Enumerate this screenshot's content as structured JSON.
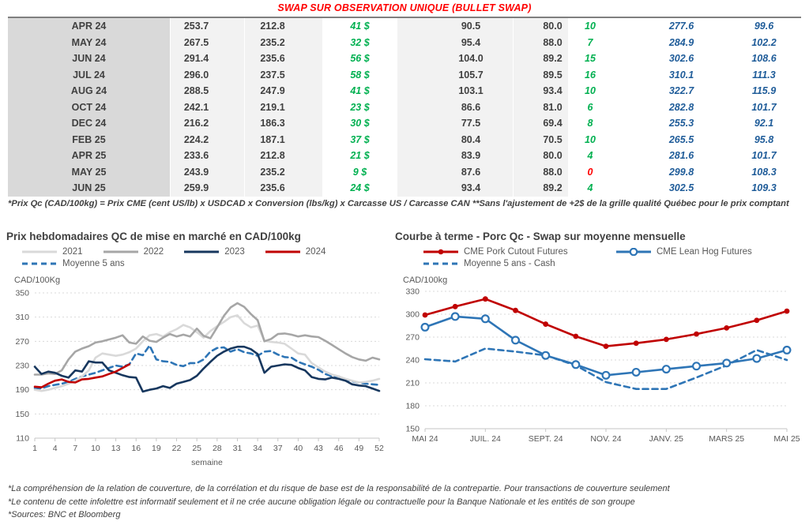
{
  "page_title": "SWAP SUR OBSERVATION UNIQUE (BULLET SWAP)",
  "colors": {
    "title_red": "#ff0000",
    "positive_green": "#00b050",
    "negative_red": "#ff0000",
    "forward_blue": "#1f5c99",
    "month_column_bg": "#d9d9d9",
    "value_column_bg": "#f2f2f2"
  },
  "table": {
    "rows": [
      {
        "month": "APR 24",
        "qc_swap": "253.7",
        "qc_cash": "212.8",
        "diff_qc": "41 $",
        "cme_swap": "90.5",
        "cme_cash": "80.0",
        "diff_cme": "10",
        "fwd_cad": "277.6",
        "fwd_us": "99.6",
        "diff_cme_negative": false
      },
      {
        "month": "MAY 24",
        "qc_swap": "267.5",
        "qc_cash": "235.2",
        "diff_qc": "32 $",
        "cme_swap": "95.4",
        "cme_cash": "88.0",
        "diff_cme": "7",
        "fwd_cad": "284.9",
        "fwd_us": "102.2",
        "diff_cme_negative": false
      },
      {
        "month": "JUN 24",
        "qc_swap": "291.4",
        "qc_cash": "235.6",
        "diff_qc": "56 $",
        "cme_swap": "104.0",
        "cme_cash": "89.2",
        "diff_cme": "15",
        "fwd_cad": "302.6",
        "fwd_us": "108.6",
        "diff_cme_negative": false
      },
      {
        "month": "JUL 24",
        "qc_swap": "296.0",
        "qc_cash": "237.5",
        "diff_qc": "58 $",
        "cme_swap": "105.7",
        "cme_cash": "89.5",
        "diff_cme": "16",
        "fwd_cad": "310.1",
        "fwd_us": "111.3",
        "diff_cme_negative": false
      },
      {
        "month": "AUG 24",
        "qc_swap": "288.5",
        "qc_cash": "247.9",
        "diff_qc": "41 $",
        "cme_swap": "103.1",
        "cme_cash": "93.4",
        "diff_cme": "10",
        "fwd_cad": "322.7",
        "fwd_us": "115.9",
        "diff_cme_negative": false
      },
      {
        "month": "OCT 24",
        "qc_swap": "242.1",
        "qc_cash": "219.1",
        "diff_qc": "23 $",
        "cme_swap": "86.6",
        "cme_cash": "81.0",
        "diff_cme": "6",
        "fwd_cad": "282.8",
        "fwd_us": "101.7",
        "diff_cme_negative": false
      },
      {
        "month": "DEC 24",
        "qc_swap": "216.2",
        "qc_cash": "186.3",
        "diff_qc": "30 $",
        "cme_swap": "77.5",
        "cme_cash": "69.4",
        "diff_cme": "8",
        "fwd_cad": "255.3",
        "fwd_us": "92.1",
        "diff_cme_negative": false
      },
      {
        "month": "FEB 25",
        "qc_swap": "224.2",
        "qc_cash": "187.1",
        "diff_qc": "37 $",
        "cme_swap": "80.4",
        "cme_cash": "70.5",
        "diff_cme": "10",
        "fwd_cad": "265.5",
        "fwd_us": "95.8",
        "diff_cme_negative": false
      },
      {
        "month": "APR 25",
        "qc_swap": "233.6",
        "qc_cash": "212.8",
        "diff_qc": "21 $",
        "cme_swap": "83.9",
        "cme_cash": "80.0",
        "diff_cme": "4",
        "fwd_cad": "281.6",
        "fwd_us": "101.7",
        "diff_cme_negative": false
      },
      {
        "month": "MAY 25",
        "qc_swap": "243.9",
        "qc_cash": "235.2",
        "diff_qc": "9 $",
        "cme_swap": "87.6",
        "cme_cash": "88.0",
        "diff_cme": "0",
        "fwd_cad": "299.8",
        "fwd_us": "108.3",
        "diff_cme_negative": true
      },
      {
        "month": "JUN 25",
        "qc_swap": "259.9",
        "qc_cash": "235.6",
        "diff_qc": "24 $",
        "cme_swap": "93.4",
        "cme_cash": "89.2",
        "diff_cme": "4",
        "fwd_cad": "302.5",
        "fwd_us": "109.3",
        "diff_cme_negative": false
      }
    ]
  },
  "table_footnote": "*Prix Qc (CAD/100kg) = Prix CME (cent US/lb) x USDCAD x Conversion (lbs/kg) x Carcasse US / Carcasse CAN **Sans l'ajustement de +2$ de la grille qualité Québec pour le prix comptant",
  "chart_data": [
    {
      "type": "line",
      "title": "Prix hebdomadaires QC de mise en marché en CAD/100kg",
      "ylabel": "CAD/100Kg",
      "xlabel": "semaine",
      "ylim": [
        110,
        350
      ],
      "yticks": [
        110,
        150,
        190,
        230,
        270,
        310,
        350
      ],
      "xticks": [
        1,
        4,
        7,
        10,
        13,
        16,
        19,
        22,
        25,
        28,
        31,
        34,
        37,
        40,
        43,
        46,
        49,
        52
      ],
      "x_range": [
        1,
        52
      ],
      "grid": "horizontal-dashed",
      "legend_position": "top",
      "series": [
        {
          "name": "2021",
          "color": "#d9d9d9",
          "style": "solid",
          "values": [
            190,
            188,
            190,
            193,
            196,
            200,
            205,
            212,
            222,
            243,
            250,
            248,
            246,
            248,
            252,
            258,
            270,
            280,
            282,
            278,
            285,
            290,
            297,
            293,
            285,
            276,
            287,
            295,
            302,
            310,
            313,
            300,
            293,
            296,
            271,
            269,
            268,
            266,
            258,
            250,
            248,
            234,
            227,
            220,
            215,
            212,
            208,
            205,
            202,
            203,
            205,
            208
          ]
        },
        {
          "name": "2022",
          "color": "#a6a6a6",
          "style": "solid",
          "values": [
            215,
            215,
            217,
            216,
            222,
            240,
            253,
            258,
            262,
            268,
            270,
            273,
            276,
            280,
            268,
            266,
            278,
            271,
            269,
            276,
            282,
            278,
            281,
            278,
            291,
            279,
            275,
            293,
            312,
            326,
            333,
            327,
            315,
            305,
            270,
            274,
            282,
            283,
            281,
            278,
            280,
            278,
            277,
            271,
            264,
            257,
            250,
            244,
            240,
            238,
            243,
            240
          ]
        },
        {
          "name": "2023",
          "color": "#17375e",
          "style": "solid",
          "values": [
            228,
            216,
            220,
            218,
            213,
            210,
            222,
            220,
            237,
            235,
            235,
            222,
            218,
            214,
            211,
            210,
            187,
            190,
            192,
            196,
            193,
            200,
            203,
            206,
            213,
            225,
            236,
            246,
            253,
            258,
            261,
            261,
            257,
            249,
            218,
            228,
            230,
            232,
            231,
            226,
            222,
            211,
            208,
            207,
            210,
            208,
            205,
            199,
            197,
            196,
            192,
            188
          ]
        },
        {
          "name": "2024",
          "color": "#c00000",
          "style": "solid",
          "values": [
            195,
            194,
            200,
            205,
            207,
            203,
            202,
            207,
            208,
            210,
            212,
            216,
            220,
            226,
            232
          ]
        },
        {
          "name": "Moyenne 5 ans",
          "color": "#2e75b6",
          "style": "dashed",
          "values": [
            193,
            192,
            196,
            198,
            200,
            203,
            208,
            212,
            215,
            218,
            222,
            226,
            230,
            228,
            232,
            250,
            247,
            263,
            240,
            237,
            236,
            231,
            229,
            234,
            234,
            240,
            253,
            259,
            260,
            253,
            257,
            252,
            250,
            246,
            253,
            254,
            248,
            244,
            243,
            236,
            232,
            228,
            223,
            216,
            212,
            212,
            207,
            204,
            202,
            200,
            199,
            198
          ]
        }
      ]
    },
    {
      "type": "line",
      "title": "Courbe à terme - Porc Qc - Swap sur moyenne mensuelle",
      "ylabel": "CAD/100kg",
      "xlabel": "",
      "ylim": [
        150,
        330
      ],
      "yticks": [
        150,
        180,
        210,
        240,
        270,
        300,
        330
      ],
      "xticks": [
        "MAI 24",
        "JUIL. 24",
        "SEPT. 24",
        "NOV. 24",
        "JANV. 25",
        "MARS 25",
        "MAI 25"
      ],
      "xtick_pos": [
        0,
        2,
        4,
        6,
        8,
        10,
        12
      ],
      "x_range": [
        0,
        12
      ],
      "grid": "horizontal-dashed",
      "legend_position": "top",
      "series": [
        {
          "name": "CME Pork Cutout Futures",
          "color": "#c00000",
          "style": "solid",
          "marker": "dot",
          "values": [
            299,
            310,
            320,
            305,
            287,
            271,
            258,
            262,
            267,
            274,
            282,
            292,
            304
          ]
        },
        {
          "name": "CME Lean Hog Futures",
          "color": "#2e75b6",
          "style": "solid",
          "marker": "circle-open",
          "values": [
            283,
            297,
            294,
            266,
            246,
            234,
            220,
            224,
            228,
            232,
            236,
            242,
            253
          ]
        },
        {
          "name": "Moyenne 5 ans - Cash",
          "color": "#2e75b6",
          "style": "dashed",
          "values": [
            241,
            238,
            255,
            251,
            246,
            233,
            211,
            202,
            202,
            217,
            233,
            253,
            240
          ]
        }
      ]
    }
  ],
  "footnotes": [
    "*La compréhension de la relation de couverture, de la corrélation et du risque de base est de la responsabilité de la contrepartie. Pour transactions de couverture seulement",
    "*Le contenu de cette infolettre est informatif seulement et il ne crée aucune obligation légale ou contractuelle pour la Banque Nationale et les entités de son groupe",
    "*Sources: BNC et Bloomberg"
  ]
}
